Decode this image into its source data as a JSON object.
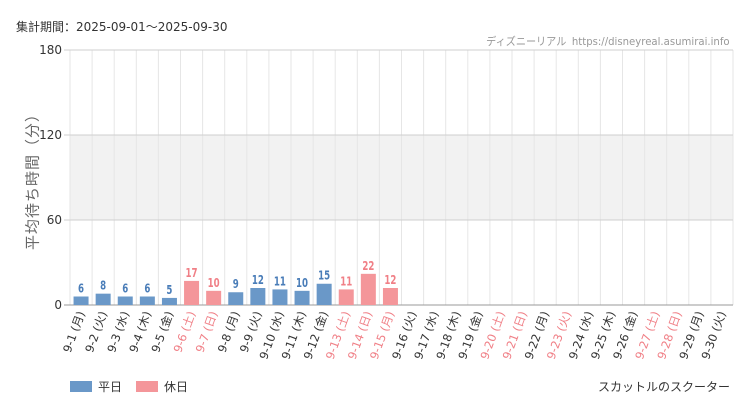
{
  "header": {
    "period": "集計期間：2025-09-01～2025-09-30",
    "source_name": "ディズニーリアル",
    "source_url": "https://disneyreal.asumirai.info"
  },
  "footer": {
    "attraction": "スカットルのスクーター"
  },
  "colors": {
    "weekday": "#6a98c8",
    "holiday": "#f4969a",
    "weekday_label": "#4a7db8",
    "holiday_label": "#f07f86",
    "band": "#f2f2f2",
    "grid": "#e6e6e6"
  },
  "chart_data": {
    "type": "bar",
    "ylabel": "平均待ち時間（分）",
    "ylim": [
      0,
      180
    ],
    "yticks": [
      0,
      60,
      120,
      180
    ],
    "shaded_band": [
      60,
      120
    ],
    "grid": true,
    "legend_position": "bottom-left",
    "legend": [
      {
        "key": "weekday",
        "label": "平日"
      },
      {
        "key": "holiday",
        "label": "休日"
      }
    ],
    "categories": [
      "9-1 (月)",
      "9-2 (火)",
      "9-3 (水)",
      "9-4 (木)",
      "9-5 (金)",
      "9-6 (土)",
      "9-7 (日)",
      "9-8 (月)",
      "9-9 (火)",
      "9-10 (水)",
      "9-11 (木)",
      "9-12 (金)",
      "9-13 (土)",
      "9-14 (日)",
      "9-15 (月)",
      "9-16 (火)",
      "9-17 (水)",
      "9-18 (木)",
      "9-19 (金)",
      "9-20 (土)",
      "9-21 (日)",
      "9-22 (月)",
      "9-23 (火)",
      "9-24 (水)",
      "9-25 (木)",
      "9-26 (金)",
      "9-27 (土)",
      "9-28 (日)",
      "9-29 (月)",
      "9-30 (火)"
    ],
    "day_types": [
      "weekday",
      "weekday",
      "weekday",
      "weekday",
      "weekday",
      "holiday",
      "holiday",
      "weekday",
      "weekday",
      "weekday",
      "weekday",
      "weekday",
      "holiday",
      "holiday",
      "holiday",
      "weekday",
      "weekday",
      "weekday",
      "weekday",
      "holiday",
      "holiday",
      "weekday",
      "holiday",
      "weekday",
      "weekday",
      "weekday",
      "holiday",
      "holiday",
      "weekday",
      "weekday"
    ],
    "values": [
      6,
      8,
      6,
      6,
      5,
      17,
      10,
      9,
      12,
      11,
      10,
      15,
      11,
      22,
      12,
      null,
      null,
      null,
      null,
      null,
      null,
      null,
      null,
      null,
      null,
      null,
      null,
      null,
      null,
      null
    ]
  }
}
